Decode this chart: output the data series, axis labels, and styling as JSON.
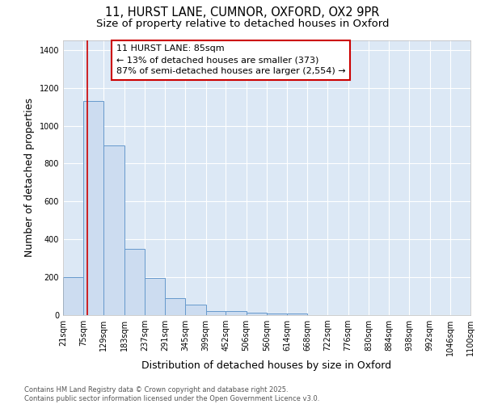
{
  "title_line1": "11, HURST LANE, CUMNOR, OXFORD, OX2 9PR",
  "title_line2": "Size of property relative to detached houses in Oxford",
  "xlabel": "Distribution of detached houses by size in Oxford",
  "ylabel": "Number of detached properties",
  "footer_line1": "Contains HM Land Registry data © Crown copyright and database right 2025.",
  "footer_line2": "Contains public sector information licensed under the Open Government Licence v3.0.",
  "bin_edges": [
    21,
    75,
    129,
    183,
    237,
    291,
    345,
    399,
    452,
    506,
    560,
    614,
    668,
    722,
    776,
    830,
    884,
    938,
    992,
    1046,
    1100
  ],
  "bin_labels": [
    "21sqm",
    "75sqm",
    "129sqm",
    "183sqm",
    "237sqm",
    "291sqm",
    "345sqm",
    "399sqm",
    "452sqm",
    "506sqm",
    "560sqm",
    "614sqm",
    "668sqm",
    "722sqm",
    "776sqm",
    "830sqm",
    "884sqm",
    "938sqm",
    "992sqm",
    "1046sqm",
    "1100sqm"
  ],
  "counts": [
    200,
    1130,
    895,
    350,
    195,
    90,
    55,
    20,
    20,
    12,
    10,
    10,
    0,
    0,
    0,
    0,
    0,
    0,
    0,
    0
  ],
  "property_size": 85,
  "red_line_color": "#cc0000",
  "bar_facecolor": "#ccdcf0",
  "bar_edgecolor": "#6699cc",
  "background_color": "#dce8f5",
  "annotation_line1": "11 HURST LANE: 85sqm",
  "annotation_line2": "← 13% of detached houses are smaller (373)",
  "annotation_line3": "87% of semi-detached houses are larger (2,554) →",
  "annotation_box_edgecolor": "#cc0000",
  "annotation_box_facecolor": "#ffffff",
  "ylim": [
    0,
    1450
  ],
  "yticks": [
    0,
    200,
    400,
    600,
    800,
    1000,
    1200,
    1400
  ],
  "title_fontsize": 10.5,
  "subtitle_fontsize": 9.5,
  "axis_label_fontsize": 9,
  "tick_label_fontsize": 7,
  "annotation_fontsize": 8,
  "footer_fontsize": 6
}
